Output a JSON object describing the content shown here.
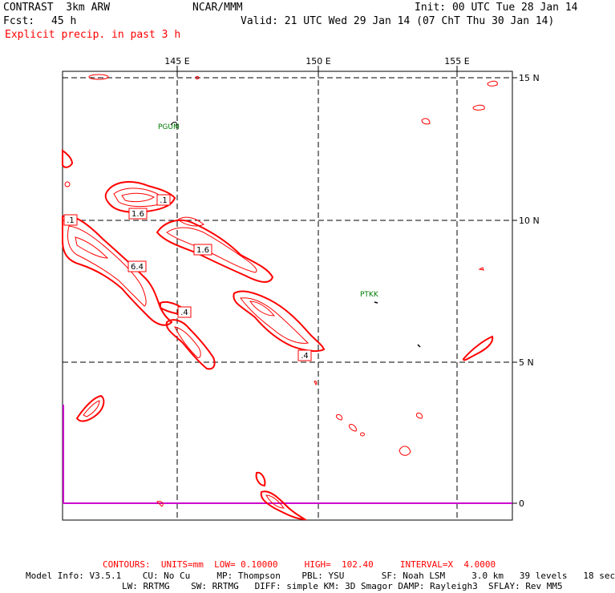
{
  "header": {
    "model": "CONTRAST  3km ARW",
    "org": "NCAR/MMM",
    "init": "Init: 00 UTC Tue 28 Jan 14",
    "fcst_label": "Fcst:",
    "fcst_value": "45 h",
    "valid": "Valid: 21 UTC Wed 29 Jan 14 (07 ChT Thu 30 Jan 14)",
    "field": "Explicit precip. in past 3 h"
  },
  "map": {
    "lon_labels": [
      "145 E",
      "150 E",
      "155 E"
    ],
    "lat_labels": [
      "15 N",
      "10 N",
      "5 N",
      "0"
    ],
    "stations": [
      "PGUM",
      "PTKK"
    ],
    "contour_labels": [
      ".1",
      "1.6",
      ".1",
      "1.6",
      "6.4",
      ".4",
      ".4"
    ],
    "colors": {
      "contour": "#ff0000",
      "station": "#007a00",
      "boundary": "#cc00cc",
      "grid": "#000000"
    }
  },
  "footer": {
    "contours": "CONTOURS:  UNITS=mm  LOW= 0.10000     HIGH=  102.40     INTERVAL=X  4.0000",
    "model_info_1": "Model Info: V3.5.1    CU: No Cu     MP: Thompson    PBL: YSU       SF: Noah LSM     3.0 km   39 levels   18 sec",
    "model_info_2": "LW: RRTMG    SW: RRTMG   DIFF: simple KM: 3D Smagor DAMP: Rayleigh3  SFLAY: Rev MM5"
  }
}
